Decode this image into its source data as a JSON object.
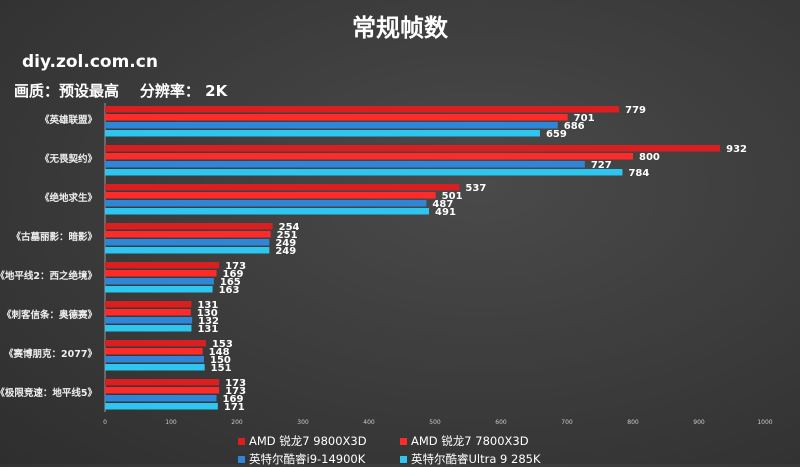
{
  "header": {
    "title": "常规帧数",
    "site": "diy.zol.com.cn",
    "quality_label": "画质：预设最高",
    "resolution_label": "分辨率： 2K"
  },
  "chart_data": {
    "type": "bar",
    "orientation": "horizontal",
    "title": "常规帧数",
    "categories": [
      "《英雄联盟》",
      "《无畏契约》",
      "《绝地求生》",
      "《古墓丽影：暗影》",
      "《地平线2：西之绝境》",
      "《刺客信条：奥德赛》",
      "《赛博朋克：2077》",
      "《极限竞速：地平线5》"
    ],
    "series": [
      {
        "name": "AMD 锐龙7 9800X3D",
        "color": "#d91f1f",
        "values": [
          779,
          932,
          537,
          254,
          173,
          131,
          153,
          173
        ]
      },
      {
        "name": "AMD 锐龙7 7800X3D",
        "color": "#ff2a2a",
        "values": [
          701,
          800,
          501,
          251,
          169,
          130,
          148,
          173
        ]
      },
      {
        "name": "英特尔酷睿i9-14900K",
        "color": "#2f86d8",
        "values": [
          686,
          727,
          487,
          249,
          165,
          132,
          150,
          169
        ]
      },
      {
        "name": "英特尔酷睿Ultra 9 285K",
        "color": "#2cc6f0",
        "values": [
          659,
          784,
          491,
          249,
          163,
          131,
          151,
          171
        ]
      }
    ],
    "xlim": [
      0,
      1000
    ],
    "xticks": [
      0,
      100,
      200,
      300,
      400,
      500,
      600,
      700,
      800,
      900,
      1000
    ],
    "legend": "bottom"
  }
}
